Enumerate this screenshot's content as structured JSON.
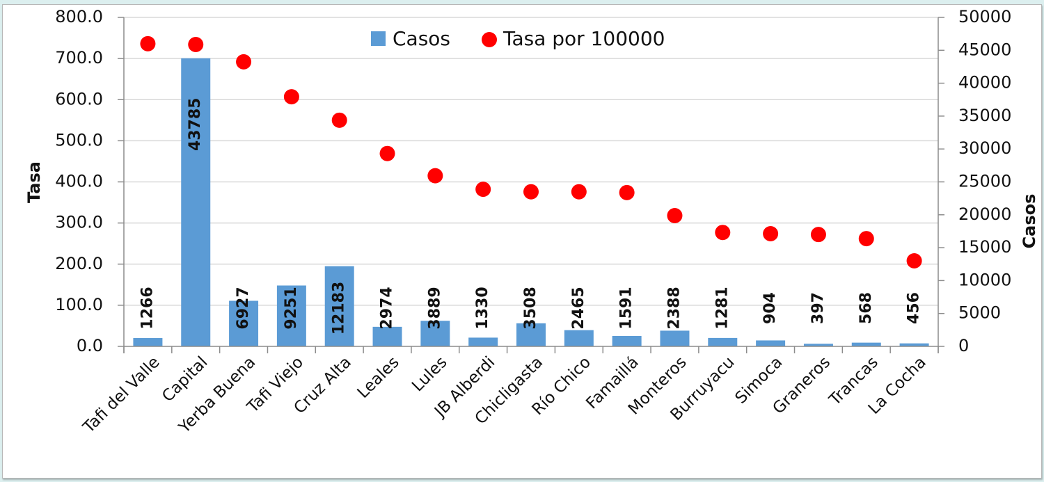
{
  "chart_data": {
    "type": "bar+scatter",
    "title": "",
    "categories": [
      "Tafi del Valle",
      "Capital",
      "Yerba Buena",
      "Tafi Viejo",
      "Cruz Alta",
      "Leales",
      "Lules",
      "JB Alberdi",
      "Chicligasta",
      "Río Chico",
      "Famaillá",
      "Monteros",
      "Burruyacu",
      "Simoca",
      "Graneros",
      "Trancas",
      "La Cocha"
    ],
    "series": [
      {
        "name": "Casos",
        "type": "bar",
        "axis": "right",
        "color": "#5b9bd5",
        "values": [
          1266,
          43785,
          6927,
          9251,
          12183,
          2974,
          3889,
          1330,
          3508,
          2465,
          1591,
          2388,
          1281,
          904,
          397,
          568,
          456
        ],
        "labels": [
          "1266",
          "43785",
          "6927",
          "9251",
          "12183",
          "2974",
          "3889",
          "1330",
          "3508",
          "2465",
          "1591",
          "2388",
          "1281",
          "904",
          "397",
          "568",
          "456"
        ]
      },
      {
        "name": "Tasa por 100000",
        "type": "scatter",
        "axis": "left",
        "color": "#ff0000",
        "values": [
          736,
          734,
          692,
          607,
          550,
          469,
          415,
          382,
          376,
          376,
          374,
          318,
          277,
          274,
          272,
          262,
          208
        ]
      }
    ],
    "left_axis": {
      "label": "Tasa",
      "ylim": [
        0,
        800
      ],
      "ticks": [
        "0.0",
        "100.0",
        "200.0",
        "300.0",
        "400.0",
        "500.0",
        "600.0",
        "700.0",
        "800.0"
      ]
    },
    "right_axis": {
      "label": "Casos",
      "ylim": [
        0,
        50000
      ],
      "ticks": [
        "0",
        "5000",
        "10000",
        "15000",
        "20000",
        "25000",
        "30000",
        "35000",
        "40000",
        "45000",
        "50000"
      ]
    },
    "xlabel": "",
    "grid": true,
    "legend": {
      "position": "top-center",
      "entries": [
        "Casos",
        "Tasa por 100000"
      ]
    }
  }
}
